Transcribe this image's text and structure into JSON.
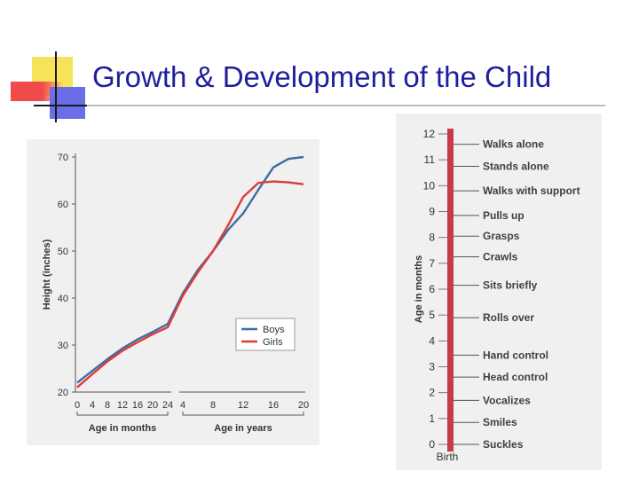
{
  "slide": {
    "title": "Growth & Development of the Child"
  },
  "colors": {
    "title": "#1f1f9e",
    "boys": "#3a6ea5",
    "girls": "#e03a3a",
    "milestone_bar": "#c8394a",
    "panel_bg": "#f0f0f0"
  },
  "chart_data": [
    {
      "type": "line",
      "title": "",
      "ylabel": "Height (inches)",
      "ylim": [
        20,
        70
      ],
      "yticks": [
        "20",
        "30",
        "40",
        "50",
        "60",
        "70"
      ],
      "x_segments": [
        {
          "label": "Age in months",
          "unit": "months",
          "ticks": [
            "0",
            "4",
            "8",
            "12",
            "16",
            "20",
            "24"
          ]
        },
        {
          "label": "Age in years",
          "unit": "years",
          "ticks": [
            "4",
            "8",
            "12",
            "16",
            "20"
          ]
        }
      ],
      "legend": {
        "position": "center-right",
        "entries": [
          "Boys",
          "Girls"
        ]
      },
      "series": [
        {
          "name": "Boys",
          "color": "#3a6ea5",
          "months": [
            [
              0,
              22
            ],
            [
              4,
              24.5
            ],
            [
              8,
              27
            ],
            [
              12,
              29.3
            ],
            [
              16,
              31.2
            ],
            [
              20,
              32.8
            ],
            [
              24,
              34.5
            ]
          ],
          "years": [
            [
              2,
              34.5
            ],
            [
              4,
              41
            ],
            [
              6,
              46
            ],
            [
              8,
              50
            ],
            [
              10,
              54.5
            ],
            [
              12,
              58
            ],
            [
              14,
              63
            ],
            [
              16,
              67.8
            ],
            [
              18,
              69.6
            ],
            [
              20,
              70
            ]
          ]
        },
        {
          "name": "Girls",
          "color": "#e03a3a",
          "months": [
            [
              0,
              21
            ],
            [
              4,
              23.8
            ],
            [
              8,
              26.5
            ],
            [
              12,
              28.8
            ],
            [
              16,
              30.6
            ],
            [
              20,
              32.3
            ],
            [
              24,
              33.8
            ]
          ],
          "years": [
            [
              2,
              33.8
            ],
            [
              4,
              40.5
            ],
            [
              6,
              45.5
            ],
            [
              8,
              50
            ],
            [
              10,
              55.5
            ],
            [
              12,
              61.5
            ],
            [
              14,
              64.5
            ],
            [
              16,
              64.8
            ],
            [
              18,
              64.6
            ],
            [
              20,
              64.2
            ]
          ]
        }
      ]
    },
    {
      "type": "timeline",
      "title": "",
      "ylabel": "Age in months",
      "ylim": [
        0,
        12
      ],
      "yticks": [
        "0",
        "1",
        "2",
        "3",
        "4",
        "5",
        "6",
        "7",
        "8",
        "9",
        "10",
        "11",
        "12"
      ],
      "start_label": "Birth",
      "milestones": [
        {
          "label": "Suckles",
          "month": 0
        },
        {
          "label": "Smiles",
          "month": 0.85
        },
        {
          "label": "Vocalizes",
          "month": 1.7
        },
        {
          "label": "Head control",
          "month": 2.6
        },
        {
          "label": "Hand control",
          "month": 3.45
        },
        {
          "label": "Rolls over",
          "month": 4.9
        },
        {
          "label": "Sits briefly",
          "month": 6.15
        },
        {
          "label": "Crawls",
          "month": 7.25
        },
        {
          "label": "Grasps",
          "month": 8.05
        },
        {
          "label": "Pulls up",
          "month": 8.85
        },
        {
          "label": "Walks with support",
          "month": 9.8
        },
        {
          "label": "Stands alone",
          "month": 10.75
        },
        {
          "label": "Walks alone",
          "month": 11.6
        }
      ]
    }
  ]
}
